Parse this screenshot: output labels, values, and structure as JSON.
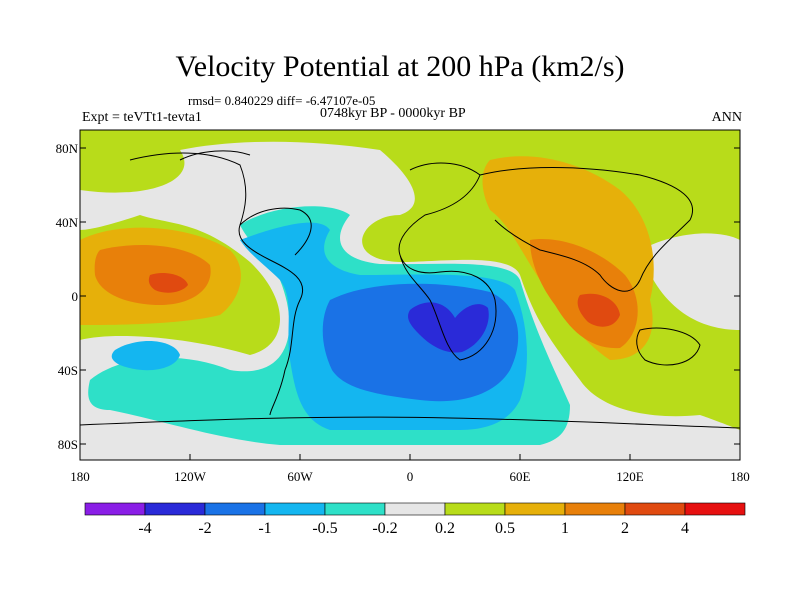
{
  "title": "Velocity Potential at 200 hPa (km2/s)",
  "stats": "rmsd= 0.840229 diff= -6.47107e-05",
  "period": "0748kyr BP - 0000kyr BP",
  "experiment": "Expt = teVTt1-tevta1",
  "season": "ANN",
  "y_ticks": [
    "80N",
    "40N",
    "0",
    "40S",
    "80S"
  ],
  "x_ticks": [
    "180",
    "120W",
    "60W",
    "0",
    "60E",
    "120E",
    "180"
  ],
  "colorbar": {
    "labels": [
      "-4",
      "-2",
      "-1",
      "-0.5",
      "-0.2",
      "0.2",
      "0.5",
      "1",
      "2",
      "4"
    ],
    "colors": [
      "#8a1ee6",
      "#2a2ad8",
      "#1a72e6",
      "#14b6f0",
      "#2ee0c8",
      "#e6e6e6",
      "#b8dc1a",
      "#e6b00a",
      "#e8800a",
      "#e04a10",
      "#e61010"
    ]
  }
}
